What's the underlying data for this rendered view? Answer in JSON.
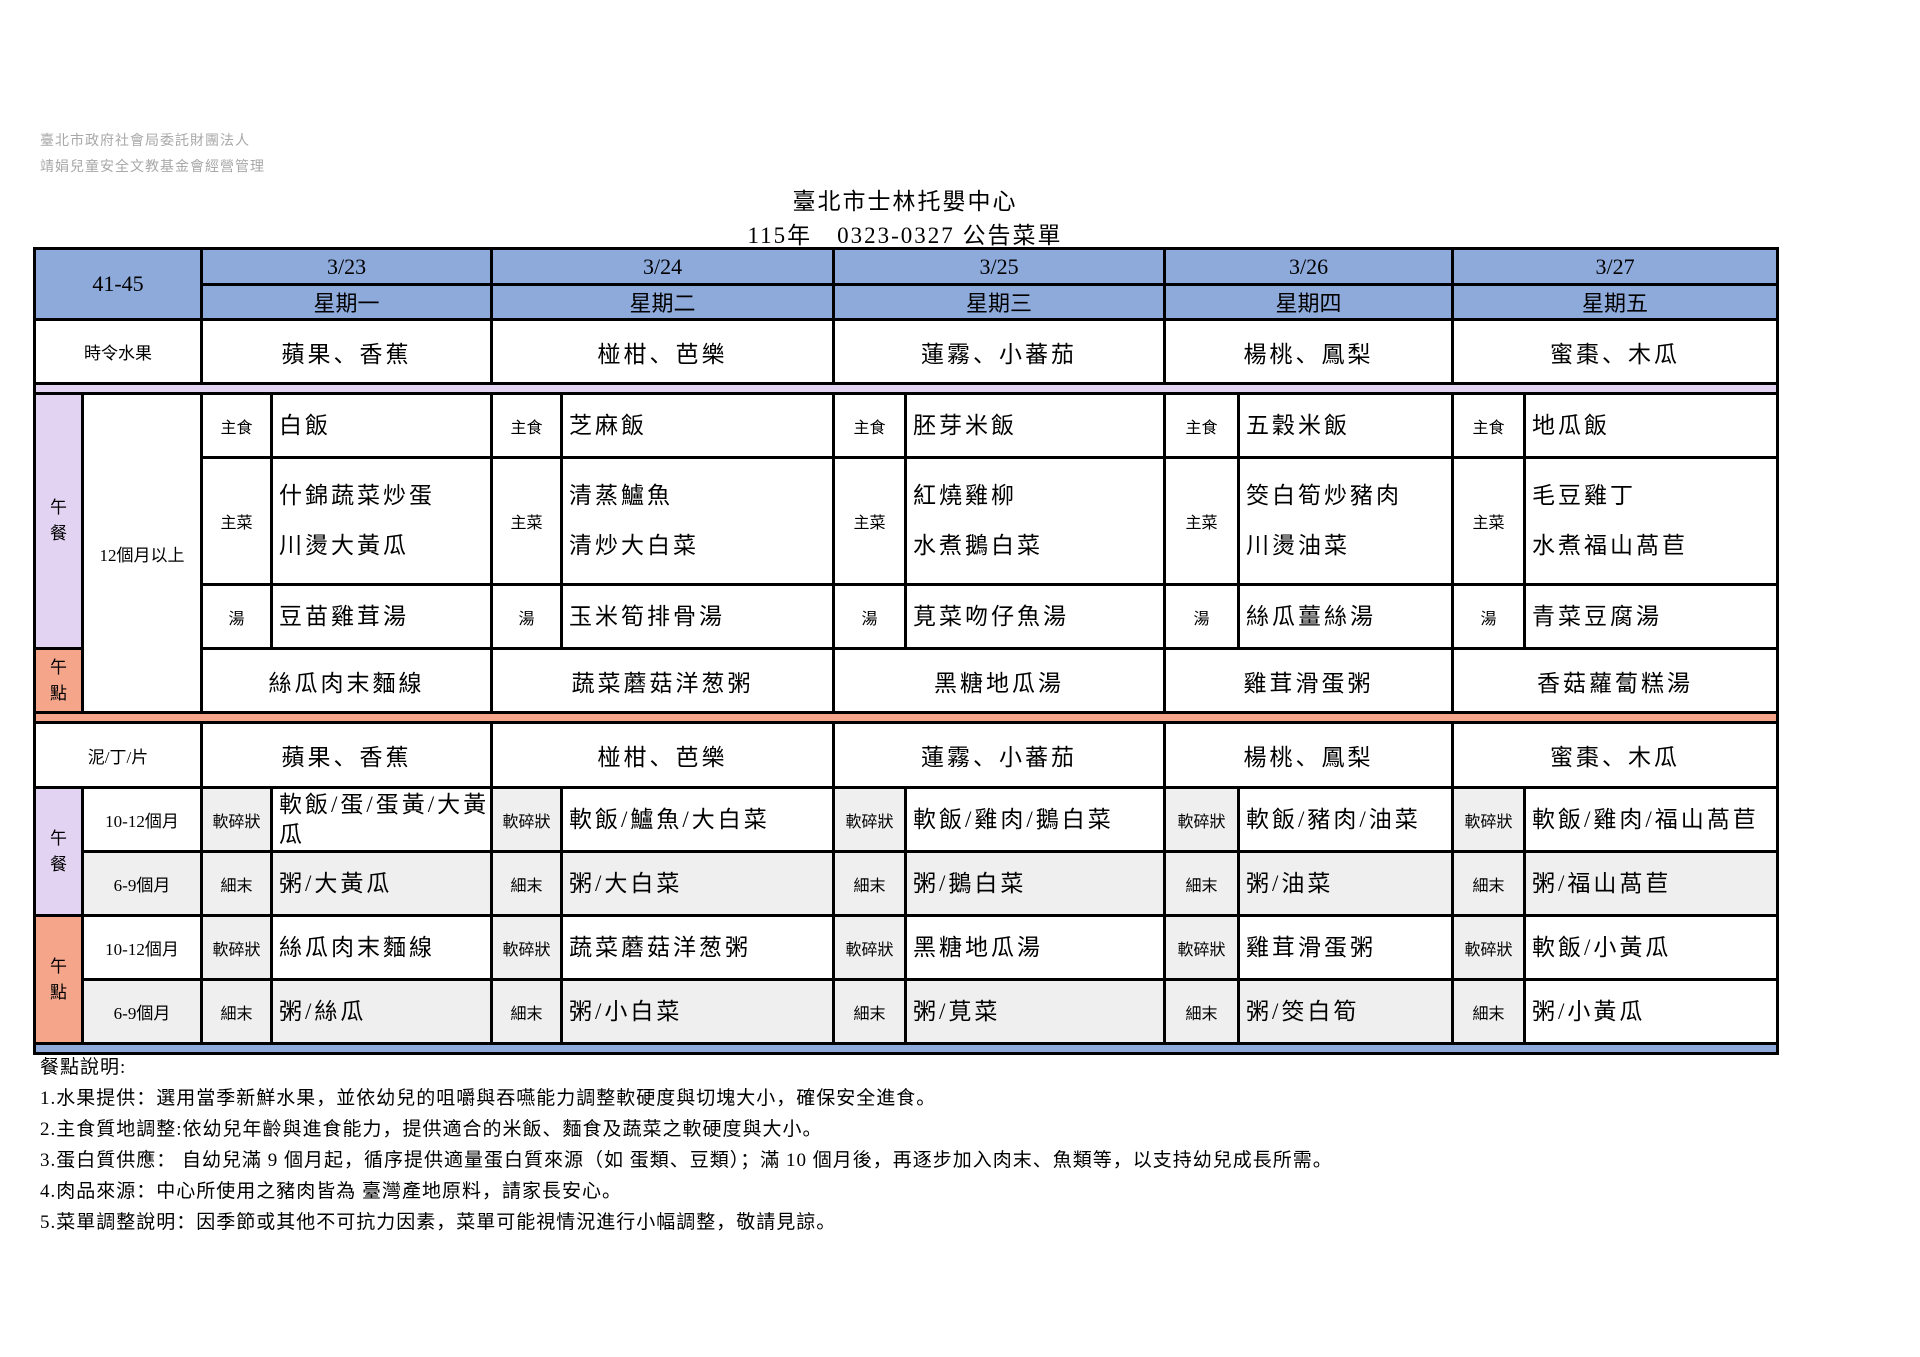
{
  "watermark": [
    "臺北市政府社會局委託財團法人",
    "靖娟兒童安全文教基金會經營管理"
  ],
  "title": "臺北市士林托嬰中心",
  "subtitle": "115年　0323-0327 公告菜單",
  "week_label": "41-45",
  "fruit_label": "時令水果",
  "texture_label": "泥/丁/片",
  "lunch_label": "午餐",
  "snack_label": "午點",
  "age_over12": "12個月以上",
  "age_10_12": "10-12個月",
  "age_6_9": "6-9個月",
  "item_labels": {
    "staple": "主食",
    "main": "主菜",
    "soup": "湯",
    "soft": "軟碎狀",
    "fine": "細末"
  },
  "colors": {
    "header": "#8eaadb",
    "lunch": "#e3d3f3",
    "snack": "#f4a58a",
    "gray": "#efefef"
  },
  "days": [
    {
      "date": "3/23",
      "weekday": "星期一",
      "fruit": "蘋果、香蕉",
      "staple": "白飯",
      "mains": [
        "什錦蔬菜炒蛋",
        "川燙大黃瓜"
      ],
      "soup": "豆苗雞茸湯",
      "snack": "絲瓜肉末麵線",
      "lunch_10_12": "軟飯/蛋/蛋黃/大黃瓜",
      "lunch_6_9": "粥/大黃瓜",
      "snack_10_12": "絲瓜肉末麵線",
      "snack_6_9": "粥/絲瓜"
    },
    {
      "date": "3/24",
      "weekday": "星期二",
      "fruit": "椪柑、芭樂",
      "staple": "芝麻飯",
      "mains": [
        "清蒸鱸魚",
        "清炒大白菜"
      ],
      "soup": "玉米筍排骨湯",
      "snack": "蔬菜蘑菇洋葱粥",
      "lunch_10_12": "軟飯/鱸魚/大白菜",
      "lunch_6_9": "粥/大白菜",
      "snack_10_12": "蔬菜蘑菇洋葱粥",
      "snack_6_9": "粥/小白菜"
    },
    {
      "date": "3/25",
      "weekday": "星期三",
      "fruit": "蓮霧、小蕃茄",
      "staple": "胚芽米飯",
      "mains": [
        "紅燒雞柳",
        "水煮鵝白菜"
      ],
      "soup": "莧菜吻仔魚湯",
      "snack": "黑糖地瓜湯",
      "lunch_10_12": "軟飯/雞肉/鵝白菜",
      "lunch_6_9": "粥/鵝白菜",
      "snack_10_12": "黑糖地瓜湯",
      "snack_6_9": "粥/莧菜"
    },
    {
      "date": "3/26",
      "weekday": "星期四",
      "fruit": "楊桃、鳳梨",
      "staple": "五穀米飯",
      "mains": [
        "筊白筍炒豬肉",
        "川燙油菜"
      ],
      "soup": "絲瓜薑絲湯",
      "snack": "雞茸滑蛋粥",
      "lunch_10_12": "軟飯/豬肉/油菜",
      "lunch_6_9": "粥/油菜",
      "snack_10_12": "雞茸滑蛋粥",
      "snack_6_9": "粥/筊白筍"
    },
    {
      "date": "3/27",
      "weekday": "星期五",
      "fruit": "蜜棗、木瓜",
      "staple": "地瓜飯",
      "mains": [
        "毛豆雞丁",
        "水煮福山萵苣"
      ],
      "soup": "青菜豆腐湯",
      "snack": "香菇蘿蔔糕湯",
      "lunch_10_12": "軟飯/雞肉/福山萵苣",
      "lunch_6_9": "粥/福山萵苣",
      "snack_10_12": "軟飯/小黃瓜",
      "snack_6_9": "粥/小黃瓜"
    }
  ],
  "notes": {
    "heading": "餐點說明:",
    "items": [
      "1.水果提供：選用當季新鮮水果，並依幼兒的咀嚼與吞嚥能力調整軟硬度與切塊大小，確保安全進食。",
      "2.主食質地調整:依幼兒年齡與進食能力，提供適合的米飯、麵食及蔬菜之軟硬度與大小。",
      "3.蛋白質供應： 自幼兒滿 9 個月起，循序提供適量蛋白質來源（如 蛋類、豆類）；滿 10 個月後，再逐步加入肉末、魚類等，以支持幼兒成長所需。",
      "4.肉品來源：中心所使用之豬肉皆為 臺灣產地原料，請家長安心。",
      "5.菜單調整說明：因季節或其他不可抗力因素，菜單可能視情況進行小幅調整，敬請見諒。"
    ]
  }
}
